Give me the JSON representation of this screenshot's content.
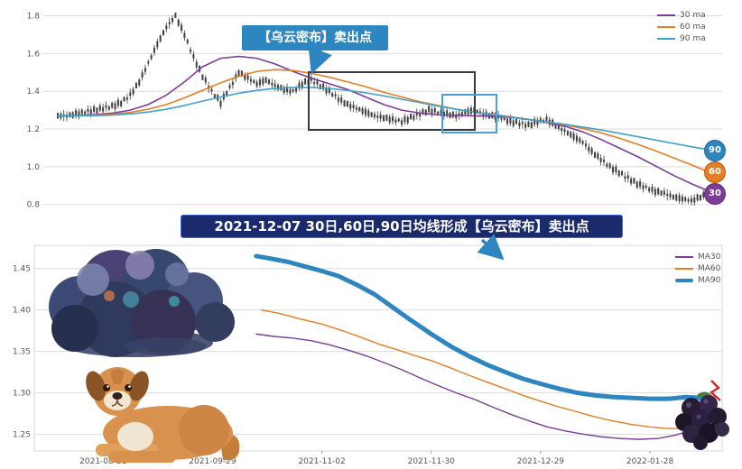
{
  "colors": {
    "ma30": "#7d3c98",
    "ma60": "#e67e22",
    "ma90": "#3fa2cc",
    "ma90_thick": "#2e86c1",
    "candle": "#3d3d3d",
    "grid": "#dcdcdc",
    "axis_text": "#555555",
    "banner_bg": "#1b2a6b",
    "banner_border": "#4466dd",
    "callout_bg": "#2e86c1",
    "arrow": "#2e86c1",
    "box_dark": "#3a3a3a",
    "box_blue": "#4aa0d8",
    "badge_90": "#2e86c1",
    "badge_60": "#e67e22",
    "badge_30": "#7d3c98"
  },
  "top_chart": {
    "legend": [
      {
        "label": "30 ma"
      },
      {
        "label": "60 ma"
      },
      {
        "label": "90 ma"
      }
    ],
    "badges": [
      {
        "label": "90"
      },
      {
        "label": "60"
      },
      {
        "label": "30"
      }
    ],
    "callout_text": "【乌云密布】卖出点"
  },
  "banner": {
    "text": "2021-12-07 30日,60日,90日均线形成【乌云密布】卖出点"
  },
  "bottom_chart": {
    "legend": [
      {
        "label": "MA30"
      },
      {
        "label": "MA60"
      },
      {
        "label": "MA90"
      }
    ]
  },
  "chart_data": [
    {
      "type": "line",
      "description": "Daily candlestick price with 30/60/90-day moving averages; dark-cloud-cover sell point highlighted",
      "ylim": [
        0.77,
        1.86
      ],
      "y_ticks": [
        "1.8",
        "1.6",
        "1.4",
        "1.2",
        "1.0",
        "0.8"
      ],
      "grid": true,
      "legend_position": "top-right",
      "series": [
        {
          "name": "price",
          "style": "candlestick",
          "color": "#3d3d3d",
          "values": [
            1.27,
            1.27,
            1.28,
            1.29,
            1.3,
            1.31,
            1.32,
            1.34,
            1.38,
            1.45,
            1.55,
            1.65,
            1.74,
            1.8,
            1.7,
            1.58,
            1.48,
            1.4,
            1.34,
            1.42,
            1.5,
            1.47,
            1.44,
            1.46,
            1.43,
            1.41,
            1.4,
            1.44,
            1.46,
            1.43,
            1.4,
            1.36,
            1.33,
            1.31,
            1.29,
            1.27,
            1.26,
            1.25,
            1.24,
            1.26,
            1.28,
            1.3,
            1.29,
            1.28,
            1.27,
            1.29,
            1.3,
            1.28,
            1.27,
            1.26,
            1.24,
            1.23,
            1.22,
            1.24,
            1.25,
            1.22,
            1.19,
            1.16,
            1.13,
            1.08,
            1.04,
            1.0,
            0.97,
            0.94,
            0.91,
            0.89,
            0.87,
            0.86,
            0.84,
            0.83,
            0.82,
            0.84,
            0.86
          ]
        },
        {
          "name": "30 ma",
          "color": "#7d3c98",
          "width": 1.6,
          "values": [
            1.27,
            1.272,
            1.276,
            1.284,
            1.3,
            1.33,
            1.38,
            1.45,
            1.53,
            1.575,
            1.585,
            1.575,
            1.545,
            1.505,
            1.47,
            1.44,
            1.41,
            1.37,
            1.33,
            1.3,
            1.285,
            1.275,
            1.272,
            1.27,
            1.268,
            1.262,
            1.25,
            1.235,
            1.215,
            1.185,
            1.145,
            1.1,
            1.055,
            1.005,
            0.955,
            0.91,
            0.87
          ]
        },
        {
          "name": "60 ma",
          "color": "#e67e22",
          "width": 1.6,
          "values": [
            1.27,
            1.271,
            1.273,
            1.278,
            1.288,
            1.305,
            1.33,
            1.365,
            1.405,
            1.445,
            1.48,
            1.505,
            1.515,
            1.51,
            1.495,
            1.475,
            1.45,
            1.425,
            1.395,
            1.37,
            1.345,
            1.325,
            1.305,
            1.29,
            1.278,
            1.265,
            1.252,
            1.238,
            1.222,
            1.203,
            1.18,
            1.152,
            1.12,
            1.085,
            1.048,
            1.01,
            0.97
          ]
        },
        {
          "name": "90 ma",
          "color": "#3fa2cc",
          "width": 1.6,
          "values": [
            1.27,
            1.27,
            1.271,
            1.274,
            1.28,
            1.29,
            1.305,
            1.325,
            1.348,
            1.37,
            1.39,
            1.405,
            1.415,
            1.42,
            1.42,
            1.415,
            1.405,
            1.392,
            1.376,
            1.358,
            1.34,
            1.322,
            1.305,
            1.29,
            1.276,
            1.263,
            1.25,
            1.238,
            1.225,
            1.21,
            1.195,
            1.178,
            1.16,
            1.142,
            1.124,
            1.106,
            1.09
          ]
        }
      ],
      "end_labels": [
        {
          "label": "90",
          "value": 1.09
        },
        {
          "label": "60",
          "value": 0.97
        },
        {
          "label": "30",
          "value": 0.86
        }
      ]
    },
    {
      "type": "line",
      "description": "Zoomed 30/60/90-day moving averages around the 2021-12-07 dark-cloud-cover sell point",
      "ylim": [
        1.23,
        1.478
      ],
      "xlim": [
        -0.63,
        5.66
      ],
      "y_ticks": [
        "1.45",
        "1.40",
        "1.35",
        "1.30",
        "1.25"
      ],
      "x_tick_labels": [
        "2021-08-31",
        "2021-09-29",
        "2021-11-02",
        "2021-11-30",
        "2021-12-29",
        "2022-01-28"
      ],
      "grid": true,
      "legend_position": "top-right",
      "series": [
        {
          "name": "MA30",
          "color": "#7d3c98",
          "width": 1.4,
          "points": [
            [
              1.4,
              1.371
            ],
            [
              1.57,
              1.368
            ],
            [
              1.74,
              1.366
            ],
            [
              1.9,
              1.363
            ],
            [
              2.07,
              1.358
            ],
            [
              2.23,
              1.352
            ],
            [
              2.4,
              1.345
            ],
            [
              2.56,
              1.337
            ],
            [
              2.73,
              1.328
            ],
            [
              2.9,
              1.318
            ],
            [
              3.06,
              1.309
            ],
            [
              3.23,
              1.3
            ],
            [
              3.4,
              1.292
            ],
            [
              3.56,
              1.283
            ],
            [
              3.73,
              1.274
            ],
            [
              3.9,
              1.266
            ],
            [
              4.06,
              1.259
            ],
            [
              4.23,
              1.254
            ],
            [
              4.4,
              1.25
            ],
            [
              4.56,
              1.247
            ],
            [
              4.73,
              1.245
            ],
            [
              4.9,
              1.244
            ],
            [
              5.07,
              1.245
            ],
            [
              5.23,
              1.249
            ],
            [
              5.4,
              1.256
            ],
            [
              5.54,
              1.263
            ]
          ]
        },
        {
          "name": "MA60",
          "color": "#e67e22",
          "width": 1.4,
          "points": [
            [
              1.45,
              1.4
            ],
            [
              1.61,
              1.396
            ],
            [
              1.78,
              1.39
            ],
            [
              2.0,
              1.383
            ],
            [
              2.19,
              1.375
            ],
            [
              2.36,
              1.367
            ],
            [
              2.52,
              1.359
            ],
            [
              2.69,
              1.352
            ],
            [
              2.85,
              1.345
            ],
            [
              3.0,
              1.339
            ],
            [
              3.18,
              1.33
            ],
            [
              3.35,
              1.321
            ],
            [
              3.51,
              1.313
            ],
            [
              3.68,
              1.305
            ],
            [
              3.84,
              1.297
            ],
            [
              4.0,
              1.29
            ],
            [
              4.17,
              1.283
            ],
            [
              4.34,
              1.277
            ],
            [
              4.5,
              1.271
            ],
            [
              4.67,
              1.266
            ],
            [
              4.83,
              1.262
            ],
            [
              5.0,
              1.259
            ],
            [
              5.17,
              1.257
            ],
            [
              5.33,
              1.257
            ],
            [
              5.45,
              1.259
            ],
            [
              5.54,
              1.263
            ]
          ]
        },
        {
          "name": "MA90",
          "color": "#2e86c1",
          "width": 5,
          "points": [
            [
              1.4,
              1.465
            ],
            [
              1.53,
              1.462
            ],
            [
              1.69,
              1.458
            ],
            [
              1.86,
              1.452
            ],
            [
              2.0,
              1.447
            ],
            [
              2.15,
              1.441
            ],
            [
              2.31,
              1.431
            ],
            [
              2.48,
              1.419
            ],
            [
              2.64,
              1.404
            ],
            [
              2.81,
              1.388
            ],
            [
              3.0,
              1.371
            ],
            [
              3.18,
              1.356
            ],
            [
              3.35,
              1.344
            ],
            [
              3.51,
              1.334
            ],
            [
              3.68,
              1.325
            ],
            [
              3.84,
              1.317
            ],
            [
              4.0,
              1.311
            ],
            [
              4.17,
              1.305
            ],
            [
              4.34,
              1.3
            ],
            [
              4.5,
              1.297
            ],
            [
              4.67,
              1.295
            ],
            [
              4.83,
              1.294
            ],
            [
              5.0,
              1.293
            ],
            [
              5.17,
              1.293
            ],
            [
              5.33,
              1.295
            ],
            [
              5.45,
              1.294
            ],
            [
              5.54,
              1.289
            ]
          ]
        }
      ]
    }
  ]
}
